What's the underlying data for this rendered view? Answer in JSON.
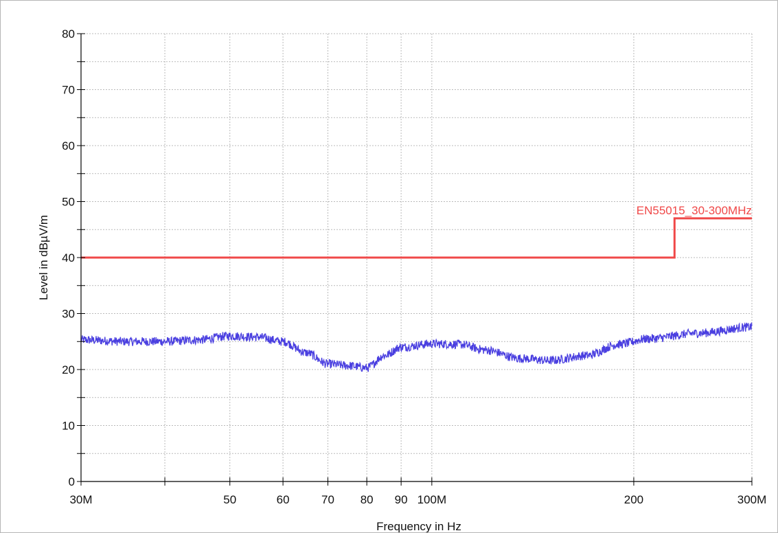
{
  "chart_data": {
    "type": "line",
    "xlabel": "Frequency in Hz",
    "ylabel": "Level in dBµV/m",
    "x_scale": "log",
    "xlim_hz": [
      30000000,
      300000000
    ],
    "ylim": [
      0,
      80
    ],
    "grid": true,
    "x_ticks": [
      {
        "value_hz": 30000000,
        "label": "30M"
      },
      {
        "value_hz": 40000000,
        "label": ""
      },
      {
        "value_hz": 50000000,
        "label": "50"
      },
      {
        "value_hz": 60000000,
        "label": "60"
      },
      {
        "value_hz": 70000000,
        "label": "70"
      },
      {
        "value_hz": 80000000,
        "label": "80"
      },
      {
        "value_hz": 90000000,
        "label": "90"
      },
      {
        "value_hz": 100000000,
        "label": "100M"
      },
      {
        "value_hz": 200000000,
        "label": "200"
      },
      {
        "value_hz": 300000000,
        "label": "300M"
      }
    ],
    "y_ticks": [
      {
        "value": 0,
        "label": "0"
      },
      {
        "value": 10,
        "label": "10"
      },
      {
        "value": 20,
        "label": "20"
      },
      {
        "value": 30,
        "label": "30"
      },
      {
        "value": 40,
        "label": "40"
      },
      {
        "value": 50,
        "label": "50"
      },
      {
        "value": 60,
        "label": "60"
      },
      {
        "value": 70,
        "label": "70"
      },
      {
        "value": 80,
        "label": "80"
      }
    ],
    "series": [
      {
        "name": "EN55015_30-300MHz",
        "color": "#f04848",
        "style": "step",
        "points": [
          {
            "x_hz": 30000000,
            "y": 40
          },
          {
            "x_hz": 230000000,
            "y": 40
          },
          {
            "x_hz": 230000000,
            "y": 47
          },
          {
            "x_hz": 300000000,
            "y": 47
          }
        ]
      },
      {
        "color": "#4a3fe0",
        "style": "noisy-line",
        "noise_db": 0.8,
        "points": [
          {
            "x_hz": 30000000,
            "y": 25.3
          },
          {
            "x_hz": 35000000,
            "y": 25.0
          },
          {
            "x_hz": 40000000,
            "y": 25.0
          },
          {
            "x_hz": 45000000,
            "y": 25.3
          },
          {
            "x_hz": 50000000,
            "y": 26.0
          },
          {
            "x_hz": 55000000,
            "y": 25.8
          },
          {
            "x_hz": 60000000,
            "y": 25.0
          },
          {
            "x_hz": 65000000,
            "y": 23.0
          },
          {
            "x_hz": 70000000,
            "y": 21.0
          },
          {
            "x_hz": 75000000,
            "y": 20.7
          },
          {
            "x_hz": 80000000,
            "y": 20.3
          },
          {
            "x_hz": 85000000,
            "y": 22.5
          },
          {
            "x_hz": 90000000,
            "y": 24.0
          },
          {
            "x_hz": 100000000,
            "y": 24.6
          },
          {
            "x_hz": 110000000,
            "y": 24.5
          },
          {
            "x_hz": 120000000,
            "y": 23.5
          },
          {
            "x_hz": 135000000,
            "y": 22.0
          },
          {
            "x_hz": 150000000,
            "y": 21.6
          },
          {
            "x_hz": 170000000,
            "y": 22.5
          },
          {
            "x_hz": 190000000,
            "y": 24.5
          },
          {
            "x_hz": 210000000,
            "y": 25.5
          },
          {
            "x_hz": 250000000,
            "y": 26.5
          },
          {
            "x_hz": 300000000,
            "y": 27.6
          }
        ]
      }
    ]
  }
}
